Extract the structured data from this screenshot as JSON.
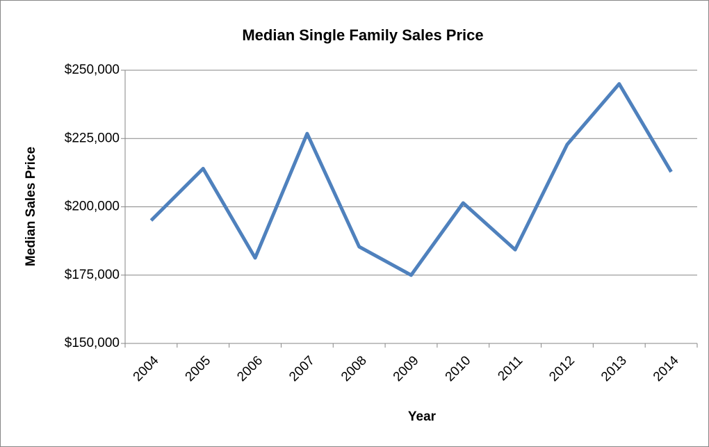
{
  "chart_data": {
    "type": "line",
    "title": "Median Single Family Sales Price",
    "x_label": "Year",
    "y_label": "Median Sales Price",
    "categories": [
      "2004",
      "2005",
      "2006",
      "2007",
      "2008",
      "2009",
      "2010",
      "2011",
      "2012",
      "2013",
      "2014"
    ],
    "series": [
      {
        "name": "Median Sales Price",
        "color": "#4f81bd",
        "values": [
          195000,
          214000,
          181300,
          226800,
          185400,
          175000,
          201400,
          184300,
          222800,
          245000,
          212800
        ]
      }
    ],
    "ylim": [
      150000,
      250000
    ],
    "yticks": [
      {
        "value": 150000,
        "label": "$150,000"
      },
      {
        "value": 175000,
        "label": "$175,000"
      },
      {
        "value": 200000,
        "label": "$200,000"
      },
      {
        "value": 225000,
        "label": "$225,000"
      },
      {
        "value": 250000,
        "label": "$250,000"
      }
    ],
    "grid": true
  }
}
